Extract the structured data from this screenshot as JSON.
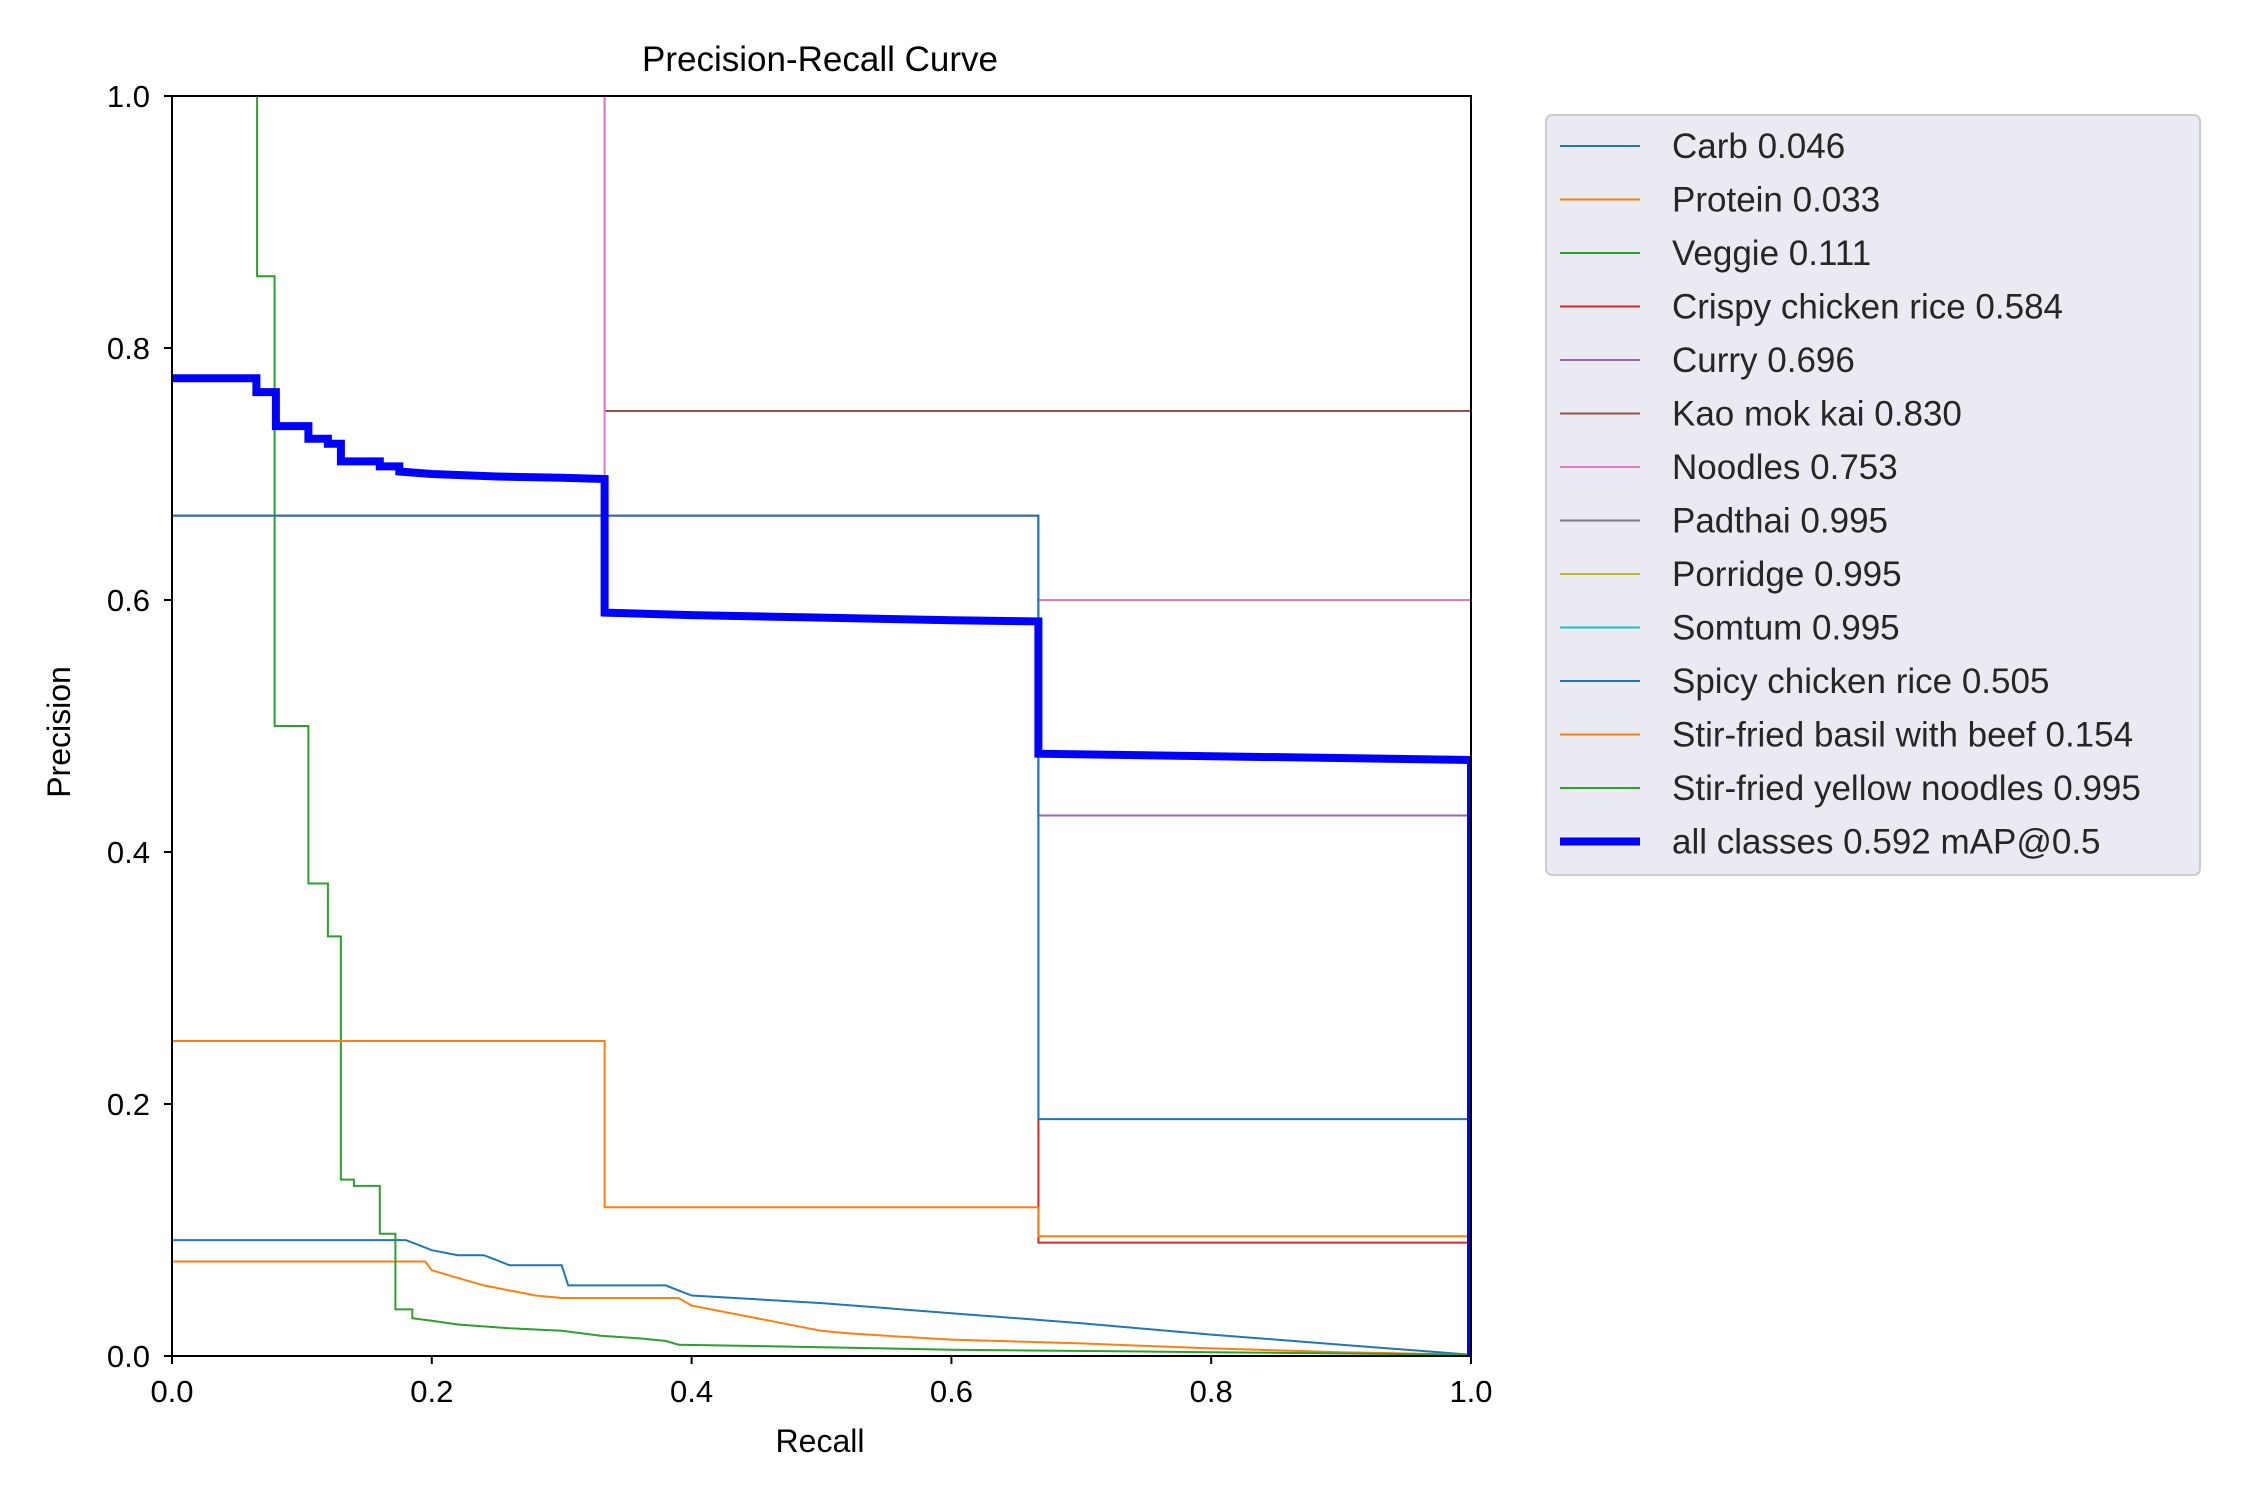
{
  "chart_data": {
    "type": "line",
    "title": "Precision-Recall Curve",
    "xlabel": "Recall",
    "ylabel": "Precision",
    "xlim": [
      0,
      1
    ],
    "ylim": [
      0,
      1
    ],
    "xticks": [
      "0.0",
      "0.2",
      "0.4",
      "0.6",
      "0.8",
      "1.0"
    ],
    "yticks": [
      "0.0",
      "0.2",
      "0.4",
      "0.6",
      "0.8",
      "1.0"
    ],
    "grid": false,
    "legend_position": "outside-right",
    "series": [
      {
        "name": "Carb 0.046",
        "color": "#1f77b4",
        "width": 2,
        "x": [
          0,
          0.18,
          0.19,
          0.2,
          0.22,
          0.24,
          0.25,
          0.26,
          0.28,
          0.3,
          0.305,
          0.33,
          0.35,
          0.38,
          0.4,
          0.5,
          0.6,
          0.7,
          0.8,
          0.9,
          1.0
        ],
        "y": [
          0.092,
          0.092,
          0.088,
          0.084,
          0.08,
          0.08,
          0.076,
          0.072,
          0.072,
          0.072,
          0.056,
          0.056,
          0.056,
          0.056,
          0.048,
          0.042,
          0.034,
          0.026,
          0.017,
          0.009,
          0.001
        ]
      },
      {
        "name": "Protein 0.033",
        "color": "#ff7f0e",
        "width": 2,
        "x": [
          0,
          0.195,
          0.2,
          0.22,
          0.24,
          0.26,
          0.28,
          0.3,
          0.39,
          0.4,
          0.42,
          0.44,
          0.46,
          0.48,
          0.5,
          0.52,
          0.55,
          0.6,
          0.7,
          0.8,
          0.9,
          1.0
        ],
        "y": [
          0.075,
          0.075,
          0.068,
          0.062,
          0.056,
          0.052,
          0.048,
          0.046,
          0.046,
          0.04,
          0.036,
          0.032,
          0.028,
          0.024,
          0.02,
          0.018,
          0.016,
          0.013,
          0.01,
          0.006,
          0.003,
          0.001
        ]
      },
      {
        "name": "Veggie 0.111",
        "color": "#2ca02c",
        "width": 2,
        "x": [
          0.065,
          0.065,
          0.0655,
          0.0655,
          0.079,
          0.079,
          0.105,
          0.105,
          0.12,
          0.12,
          0.13,
          0.13,
          0.14,
          0.14,
          0.16,
          0.16,
          0.172,
          0.172,
          0.185,
          0.185,
          0.2,
          0.22,
          0.26,
          0.3,
          0.33,
          0.36,
          0.38,
          0.39,
          0.5,
          0.6,
          0.8,
          1.0
        ],
        "y": [
          1.0,
          1.0,
          1.0,
          0.857,
          0.857,
          0.5,
          0.5,
          0.375,
          0.375,
          0.333,
          0.333,
          0.14,
          0.14,
          0.135,
          0.135,
          0.097,
          0.097,
          0.037,
          0.037,
          0.03,
          0.028,
          0.025,
          0.022,
          0.02,
          0.016,
          0.014,
          0.012,
          0.009,
          0.007,
          0.005,
          0.003,
          0.001
        ]
      },
      {
        "name": "Crispy chicken rice 0.584",
        "color": "#d62728",
        "width": 2,
        "x": [
          0,
          0.667,
          0.667,
          1.0,
          1.0
        ],
        "y": [
          0.667,
          0.667,
          0.09,
          0.09,
          0
        ]
      },
      {
        "name": "Curry 0.696",
        "color": "#9467bd",
        "width": 2,
        "x": [
          0,
          0.667,
          0.667,
          1.0,
          1.0
        ],
        "y": [
          0.667,
          0.667,
          0.429,
          0.429,
          0
        ]
      },
      {
        "name": "Kao mok kai 0.830",
        "color": "#8c564b",
        "width": 2,
        "x": [
          0.333,
          0.333,
          1.0,
          1.0
        ],
        "y": [
          1.0,
          0.75,
          0.75,
          0
        ]
      },
      {
        "name": "Noodles 0.753",
        "color": "#e377c2",
        "width": 2,
        "x": [
          0.333,
          0.333,
          0.667,
          0.667,
          1.0,
          1.0
        ],
        "y": [
          1.0,
          0.667,
          0.667,
          0.6,
          0.6,
          0
        ]
      },
      {
        "name": "Padthai 0.995",
        "color": "#7f7f7f",
        "width": 2,
        "x": [
          0,
          1.0,
          1.0
        ],
        "y": [
          1.0,
          1.0,
          0
        ]
      },
      {
        "name": "Porridge 0.995",
        "color": "#bcbd22",
        "width": 2,
        "x": [
          0,
          1.0,
          1.0
        ],
        "y": [
          1.0,
          1.0,
          0
        ]
      },
      {
        "name": "Somtum 0.995",
        "color": "#17becf",
        "width": 2,
        "x": [
          0,
          1.0,
          1.0
        ],
        "y": [
          1.0,
          1.0,
          0
        ]
      },
      {
        "name": "Spicy chicken rice 0.505",
        "color": "#1f77b4",
        "width": 2,
        "x": [
          0,
          0.667,
          0.667,
          1.0,
          1.0
        ],
        "y": [
          0.667,
          0.667,
          0.188,
          0.188,
          0
        ]
      },
      {
        "name": "Stir-fried basil with beef 0.154",
        "color": "#ff7f0e",
        "width": 2,
        "x": [
          0,
          0.333,
          0.333,
          0.667,
          0.667,
          1.0,
          1.0
        ],
        "y": [
          0.25,
          0.25,
          0.118,
          0.118,
          0.095,
          0.095,
          0
        ]
      },
      {
        "name": "Stir-fried yellow noodles 0.995",
        "color": "#2ca02c",
        "width": 2,
        "x": [
          0,
          1.0,
          1.0
        ],
        "y": [
          1.0,
          1.0,
          0
        ]
      },
      {
        "name": "all classes 0.592 mAP@0.5",
        "color": "#0000ff",
        "width": 8,
        "x": [
          0,
          0.065,
          0.065,
          0.08,
          0.08,
          0.105,
          0.105,
          0.12,
          0.12,
          0.13,
          0.13,
          0.16,
          0.16,
          0.175,
          0.175,
          0.2,
          0.25,
          0.3,
          0.333,
          0.333,
          0.4,
          0.5,
          0.6,
          0.667,
          0.667,
          0.8,
          1.0,
          1.0
        ],
        "y": [
          0.776,
          0.776,
          0.765,
          0.765,
          0.738,
          0.738,
          0.728,
          0.728,
          0.724,
          0.724,
          0.71,
          0.71,
          0.706,
          0.706,
          0.702,
          0.7,
          0.698,
          0.697,
          0.696,
          0.59,
          0.588,
          0.586,
          0.584,
          0.583,
          0.478,
          0.476,
          0.473,
          0
        ]
      }
    ]
  }
}
